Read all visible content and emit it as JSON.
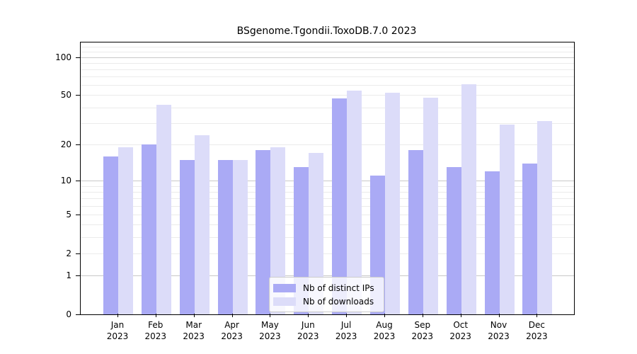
{
  "chart_data": {
    "type": "bar",
    "title": "BSgenome.Tgondii.ToxoDB.7.0 2023",
    "categories": [
      "Jan",
      "Feb",
      "Mar",
      "Apr",
      "May",
      "Jun",
      "Jul",
      "Aug",
      "Sep",
      "Oct",
      "Nov",
      "Dec"
    ],
    "x_tick_second_line": "2023",
    "series": [
      {
        "name": "Nb of distinct IPs",
        "color": "#aaaaf5",
        "values": [
          16,
          20,
          15,
          15,
          18,
          13,
          47,
          11,
          18,
          13,
          12,
          14
        ]
      },
      {
        "name": "Nb of downloads",
        "color": "#dcdcf9",
        "values": [
          19,
          42,
          24,
          15,
          19,
          17,
          54,
          52,
          48,
          61,
          29,
          31
        ]
      }
    ],
    "y_axis": {
      "scale": "log1p",
      "ticks": [
        0,
        1,
        2,
        5,
        10,
        20,
        50,
        100
      ],
      "max": 130
    },
    "x_axis_label": "",
    "y_axis_label": "",
    "grid": true,
    "legend_position": "bottom-center",
    "colors": {
      "major_grid": "#c8c8c8",
      "minor_grid": "#ebebeb",
      "axis": "#000000",
      "background": "#ffffff"
    }
  }
}
